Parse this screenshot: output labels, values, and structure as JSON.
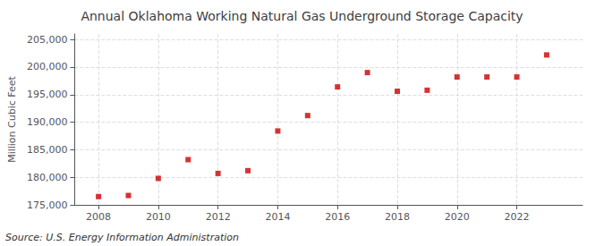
{
  "chart_data": {
    "type": "scatter",
    "title": "Annual Oklahoma Working Natural Gas Underground Storage Capacity",
    "ylabel": "Million Cubic Feet",
    "annotations": [
      "Source: U.S. Energy Information Administration"
    ],
    "x": [
      2008,
      2009,
      2010,
      2011,
      2012,
      2013,
      2014,
      2015,
      2016,
      2017,
      2018,
      2019,
      2020,
      2021,
      2022,
      2023
    ],
    "values": [
      176500,
      176700,
      179800,
      183200,
      180700,
      181200,
      188400,
      191200,
      196400,
      199000,
      195600,
      195800,
      198200,
      198200,
      198200,
      202200
    ],
    "color": "#cc0000",
    "marker": "square",
    "xlim": [
      2007.2,
      2024.2
    ],
    "xticks": [
      2008,
      2010,
      2012,
      2014,
      2016,
      2018,
      2020,
      2022
    ],
    "ylim": [
      175000,
      206000
    ],
    "yticks": [
      {
        "value": 175000,
        "label": "175,000"
      },
      {
        "value": 180000,
        "label": "180,000"
      },
      {
        "value": 185000,
        "label": "185,000"
      },
      {
        "value": 190000,
        "label": "190,000"
      },
      {
        "value": 195000,
        "label": "195,000"
      },
      {
        "value": 200000,
        "label": "200,000"
      },
      {
        "value": 205000,
        "label": "205,000"
      }
    ],
    "grid": true
  }
}
